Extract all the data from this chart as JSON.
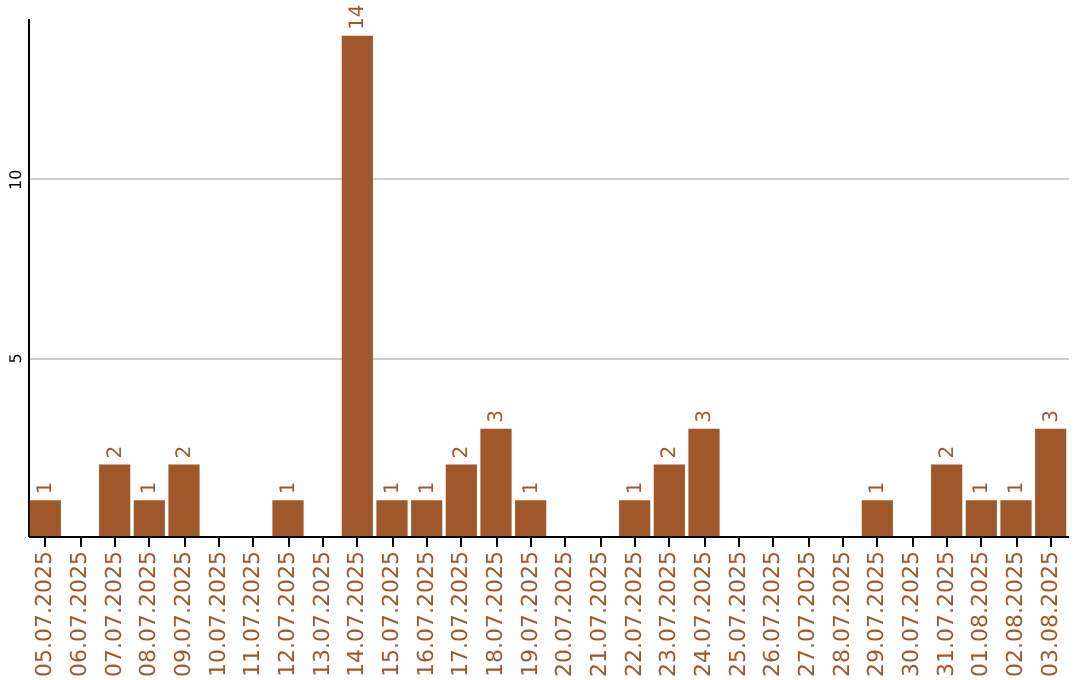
{
  "chart_data": {
    "type": "bar",
    "categories": [
      "05.07.2025",
      "06.07.2025",
      "07.07.2025",
      "08.07.2025",
      "09.07.2025",
      "10.07.2025",
      "11.07.2025",
      "12.07.2025",
      "13.07.2025",
      "14.07.2025",
      "15.07.2025",
      "16.07.2025",
      "17.07.2025",
      "18.07.2025",
      "19.07.2025",
      "20.07.2025",
      "21.07.2025",
      "22.07.2025",
      "23.07.2025",
      "24.07.2025",
      "25.07.2025",
      "26.07.2025",
      "27.07.2025",
      "28.07.2025",
      "29.07.2025",
      "30.07.2025",
      "31.07.2025",
      "01.08.2025",
      "02.08.2025",
      "03.08.2025"
    ],
    "values": [
      1,
      0,
      2,
      1,
      2,
      0,
      0,
      1,
      0,
      14,
      1,
      1,
      2,
      3,
      1,
      0,
      0,
      1,
      2,
      3,
      0,
      0,
      0,
      0,
      1,
      0,
      2,
      1,
      1,
      3
    ],
    "value_labels": [
      "1",
      null,
      "2",
      "1",
      "2",
      null,
      null,
      "1",
      null,
      "14",
      "1",
      "1",
      "2",
      "3",
      "1",
      null,
      null,
      "1",
      "2",
      "3",
      null,
      null,
      null,
      null,
      "1",
      null,
      "2",
      "1",
      "1",
      "3"
    ],
    "color": "#a0582a",
    "ylim": [
      0,
      14.5
    ],
    "yticks": [
      5,
      10
    ],
    "grid": "y"
  }
}
